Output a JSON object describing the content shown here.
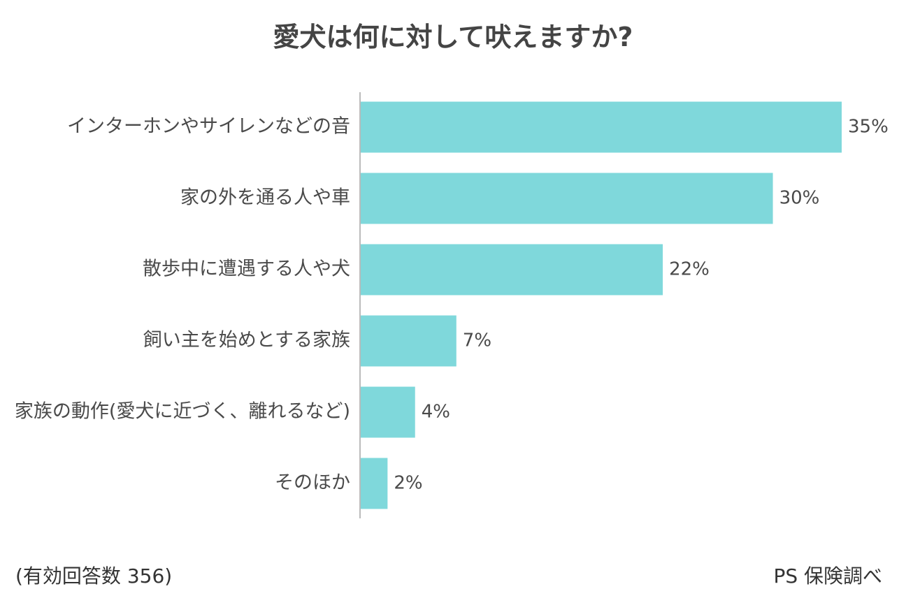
{
  "chart_data": {
    "type": "bar",
    "orientation": "horizontal",
    "title": "愛犬は何に対して吠えますか?",
    "categories": [
      "インターホンやサイレンなどの音",
      "家の外を通る人や車",
      "散歩中に遭遇する人や犬",
      "飼い主を始めとする家族",
      "家族の動作(愛犬に近づく、離れるなど)",
      "そのほか"
    ],
    "values": [
      35,
      30,
      22,
      7,
      4,
      2
    ],
    "value_labels": [
      "35%",
      "30%",
      "22%",
      "7%",
      "4%",
      "2%"
    ],
    "xlim": [
      0,
      35
    ],
    "grid": false,
    "bar_color": "#7fd8db",
    "axis_color": "#bbbbbb"
  },
  "footnote": "(有効回答数 356)",
  "source": "PS 保険調べ"
}
